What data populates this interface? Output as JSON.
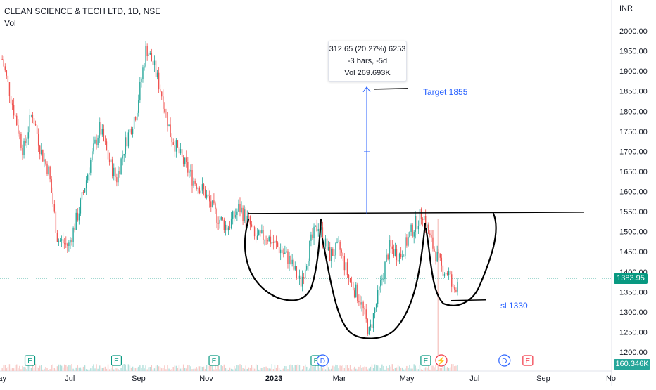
{
  "header": {
    "symbol_line": "CLEAN SCIENCE & TECH LTD, 1D, NSE",
    "volume_label": "Vol"
  },
  "currency": "INR",
  "tooltip": {
    "line1": "312.65 (20.27%) 6253",
    "line2": "-3 bars, -5d",
    "line3": "Vol 269.693K"
  },
  "annotations": {
    "target": "Target 1855",
    "stoploss": "sl 1330"
  },
  "last_price_badge": "1383.95",
  "last_volume_badge": "160.346K",
  "colors": {
    "up": "#26a69a",
    "down": "#ef5350",
    "annotation": "#2962ff",
    "price_badge": "#089981",
    "drawing": "#000000"
  },
  "event_markers": [
    {
      "label": "E",
      "date": "2022-05-26",
      "color": "#089981"
    },
    {
      "label": "E",
      "date": "2022-08-12",
      "color": "#089981"
    },
    {
      "label": "E",
      "date": "2022-11-08",
      "color": "#089981"
    },
    {
      "label": "E",
      "date": "2023-02-08",
      "color": "#089981"
    },
    {
      "label": "D",
      "date": "2023-02-14",
      "color": "#2962ff"
    },
    {
      "label": "E",
      "date": "2023-05-18",
      "color": "#089981"
    },
    {
      "label": "⚡",
      "date": "2023-06-01",
      "color": "#f23645"
    },
    {
      "label": "D",
      "date": "2023-07-28",
      "color": "#2962ff"
    },
    {
      "label": "E",
      "date": "2023-08-18",
      "color": "#f23645"
    }
  ],
  "chart_data": {
    "type": "line",
    "title": "CLEAN SCIENCE & TECH LTD, 1D, NSE",
    "xlabel": "",
    "ylabel": "INR",
    "x_tick_labels": [
      "ay",
      "Jul",
      "Sep",
      "Nov",
      "2023",
      "Mar",
      "May",
      "Jul",
      "Sep",
      "No"
    ],
    "y_tick_labels": [
      "1200.00",
      "1250.00",
      "1300.00",
      "1350.00",
      "1400.00",
      "1450.00",
      "1500.00",
      "1550.00",
      "1600.00",
      "1650.00",
      "1700.00",
      "1750.00",
      "1800.00",
      "1850.00",
      "1900.00",
      "1950.00",
      "2000.00"
    ],
    "ylim": [
      1180,
      2040
    ],
    "grid": false,
    "series": [
      {
        "values_by_date": [
          [
            "2022-05-01",
            1930
          ],
          [
            "2022-05-10",
            1820
          ],
          [
            "2022-05-20",
            1700
          ],
          [
            "2022-05-28",
            1800
          ],
          [
            "2022-06-05",
            1700
          ],
          [
            "2022-06-12",
            1650
          ],
          [
            "2022-06-20",
            1480
          ],
          [
            "2022-06-30",
            1465
          ],
          [
            "2022-07-10",
            1560
          ],
          [
            "2022-07-20",
            1680
          ],
          [
            "2022-07-28",
            1760
          ],
          [
            "2022-08-05",
            1680
          ],
          [
            "2022-08-12",
            1630
          ],
          [
            "2022-08-20",
            1720
          ],
          [
            "2022-08-30",
            1800
          ],
          [
            "2022-09-08",
            1960
          ],
          [
            "2022-09-15",
            1910
          ],
          [
            "2022-09-22",
            1840
          ],
          [
            "2022-09-30",
            1740
          ],
          [
            "2022-10-10",
            1680
          ],
          [
            "2022-10-20",
            1630
          ],
          [
            "2022-10-30",
            1600
          ],
          [
            "2022-11-10",
            1540
          ],
          [
            "2022-11-20",
            1510
          ],
          [
            "2022-12-01",
            1560
          ],
          [
            "2022-12-10",
            1520
          ],
          [
            "2022-12-15",
            1480
          ],
          [
            "2022-12-25",
            1490
          ],
          [
            "2023-01-05",
            1460
          ],
          [
            "2023-01-15",
            1430
          ],
          [
            "2023-01-25",
            1370
          ],
          [
            "2023-02-03",
            1470
          ],
          [
            "2023-02-10",
            1520
          ],
          [
            "2023-02-20",
            1440
          ],
          [
            "2023-03-01",
            1460
          ],
          [
            "2023-03-10",
            1380
          ],
          [
            "2023-03-20",
            1330
          ],
          [
            "2023-03-28",
            1245
          ],
          [
            "2023-04-05",
            1340
          ],
          [
            "2023-04-15",
            1460
          ],
          [
            "2023-04-25",
            1440
          ],
          [
            "2023-05-05",
            1500
          ],
          [
            "2023-05-15",
            1550
          ],
          [
            "2023-05-22",
            1480
          ],
          [
            "2023-06-01",
            1410
          ],
          [
            "2023-06-08",
            1395
          ],
          [
            "2023-06-12",
            1345
          ],
          [
            "2023-06-16",
            1383.95
          ]
        ]
      }
    ],
    "drawn_levels": {
      "neckline": 1545,
      "target": 1855,
      "stop_loss": 1330
    },
    "volume_last": "160.346K"
  }
}
